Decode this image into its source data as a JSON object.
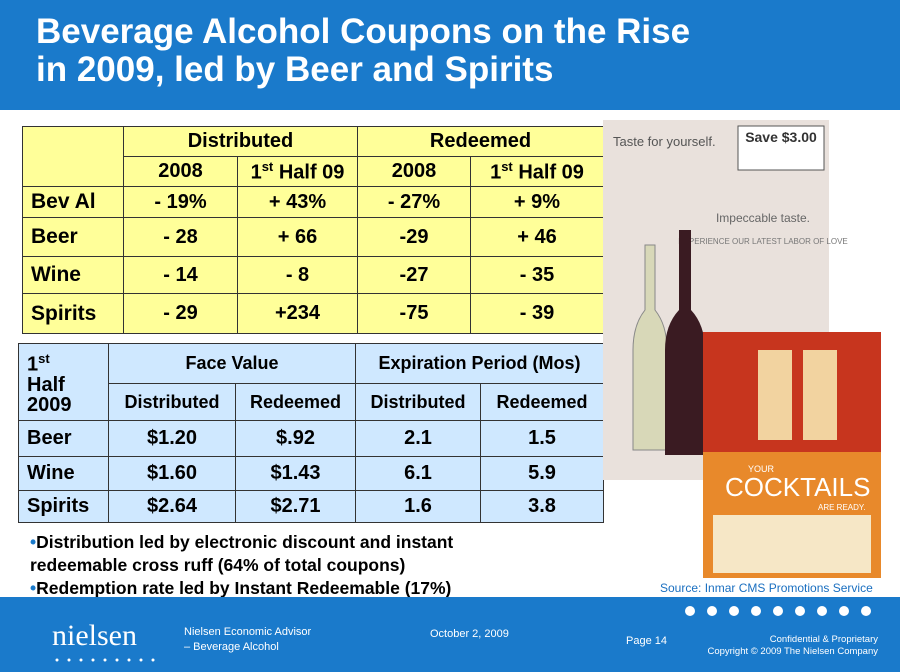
{
  "header": {
    "title_lines": [
      "Beverage Alcohol Coupons on the Rise",
      "in 2009, led by Beer and Spirits"
    ]
  },
  "table1": {
    "groups": [
      "Distributed",
      "Redeemed"
    ],
    "subheaders": [
      "2008",
      {
        "num": "1",
        "sup": "st",
        "rest": " Half 09"
      },
      "2008",
      {
        "num": "1",
        "sup": "st",
        "rest": " Half 09"
      }
    ],
    "rows": [
      [
        "Bev Al",
        "- 19%",
        "+ 43%",
        "- 27%",
        "+ 9%"
      ],
      [
        "Beer",
        "- 28",
        "+ 66",
        "-29",
        "+ 46"
      ],
      [
        "Wine",
        "- 14",
        "- 8",
        "-27",
        "- 35"
      ],
      [
        "Spirits",
        "- 29",
        "+234",
        "-75",
        "- 39"
      ]
    ]
  },
  "table2": {
    "corner": {
      "num": "1",
      "sup": "st",
      "lines": [
        "Half",
        "2009"
      ]
    },
    "groups": [
      "Face Value",
      "Expiration Period (Mos)"
    ],
    "subheaders": [
      "Distributed",
      "Redeemed",
      "Distributed",
      "Redeemed"
    ],
    "rows": [
      [
        "Beer",
        "$1.20",
        "$.92",
        "2.1",
        "1.5"
      ],
      [
        "Wine",
        "$1.60",
        "$1.43",
        "6.1",
        "5.9"
      ],
      [
        "Spirits",
        "$2.64",
        "$2.71",
        "1.6",
        "3.8"
      ]
    ]
  },
  "bullets": [
    "Distribution led by electronic discount and instant redeemable cross ruff  (64% of total coupons)",
    "Redemption rate led by Instant Redeemable (17%)"
  ],
  "source": "Source: Inmar CMS Promotions Service",
  "images": {
    "coupon1": [
      "Taste for yourself.",
      "Save $3.00",
      "Impeccable taste.",
      "EXPERIENCE OUR LATEST LABOR OF LOVE"
    ],
    "coupon2": [
      "YOUR",
      "COCKTAILS",
      "ARE READY."
    ]
  },
  "footer": {
    "logo": "nielsen",
    "advisor_lines": [
      "Nielsen Economic Advisor",
      "– Beverage Alcohol"
    ],
    "date": "October 2, 2009",
    "page": "Page 14",
    "confidential_lines": [
      "Confidential & Proprietary",
      "Copyright © 2009 The Nielsen Company"
    ]
  }
}
